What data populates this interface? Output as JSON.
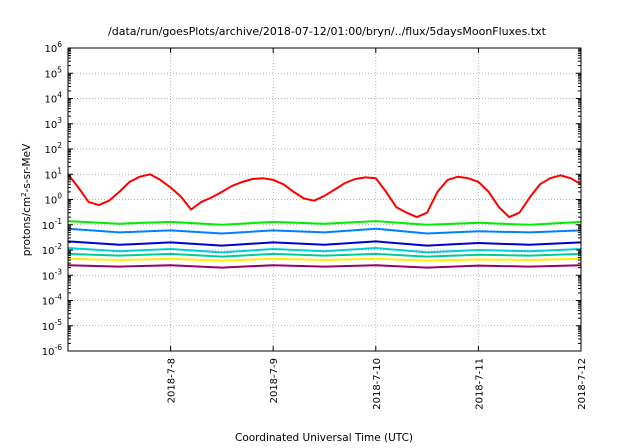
{
  "chart_data": {
    "type": "line",
    "title": "/data/run/goesPlots/archive/2018-07-12/01:00/bryn/../flux/5daysMoonFluxes.txt",
    "xlabel": "Coordinated Universal Time (UTC)",
    "ylabel_base": "protons/cm",
    "ylabel_sup": "2",
    "ylabel_rest": "-s-sr-MeV",
    "yscale": "log",
    "ylim_exp": [
      -6,
      6
    ],
    "y_tick_labels": [
      {
        "base": "10",
        "exp": "-6"
      },
      {
        "base": "10",
        "exp": "-5"
      },
      {
        "base": "10",
        "exp": "-4"
      },
      {
        "base": "10",
        "exp": "-3"
      },
      {
        "base": "10",
        "exp": "-2"
      },
      {
        "base": "10",
        "exp": "-1"
      },
      {
        "base": "10",
        "exp": "0"
      },
      {
        "base": "10",
        "exp": "1"
      },
      {
        "base": "10",
        "exp": "2"
      },
      {
        "base": "10",
        "exp": "3"
      },
      {
        "base": "10",
        "exp": "4"
      },
      {
        "base": "10",
        "exp": "5"
      },
      {
        "base": "10",
        "exp": "6"
      }
    ],
    "xlim_days": [
      0,
      5
    ],
    "x_ticks": [
      {
        "day": 1,
        "label": "2018-7-8"
      },
      {
        "day": 2,
        "label": "2018-7-9"
      },
      {
        "day": 3,
        "label": "2018-7-10"
      },
      {
        "day": 4,
        "label": "2018-7-11"
      },
      {
        "day": 5,
        "label": "2018-7-12"
      }
    ],
    "grid": true,
    "legend": "none",
    "series": [
      {
        "color": "#ff0000",
        "x": [
          0,
          0.1,
          0.2,
          0.3,
          0.4,
          0.5,
          0.6,
          0.7,
          0.8,
          0.9,
          1,
          1.1,
          1.2,
          1.3,
          1.4,
          1.5,
          1.6,
          1.7,
          1.8,
          1.9,
          2,
          2.1,
          2.2,
          2.3,
          2.4,
          2.5,
          2.6,
          2.7,
          2.8,
          2.9,
          3,
          3.1,
          3.2,
          3.3,
          3.4,
          3.5,
          3.6,
          3.7,
          3.8,
          3.9,
          4,
          4.1,
          4.2,
          4.3,
          4.4,
          4.5,
          4.6,
          4.7,
          4.8,
          4.9,
          5
        ],
        "y": [
          10,
          3,
          0.8,
          0.6,
          0.9,
          2,
          5,
          8,
          10,
          6,
          3,
          1.3,
          0.4,
          0.8,
          1.2,
          2,
          3.5,
          5,
          6.5,
          7,
          6,
          4,
          2,
          1.1,
          0.9,
          1.4,
          2.5,
          4.5,
          6.5,
          7.5,
          7,
          2,
          0.5,
          0.3,
          0.2,
          0.3,
          2,
          6,
          8,
          7,
          5,
          2,
          0.5,
          0.2,
          0.3,
          1.2,
          4,
          7,
          9,
          7,
          4
        ]
      },
      {
        "color": "#00ee00",
        "x": [
          0,
          0.5,
          1,
          1.5,
          2,
          2.5,
          3,
          3.5,
          4,
          4.5,
          5
        ],
        "y": [
          0.14,
          0.11,
          0.13,
          0.1,
          0.13,
          0.11,
          0.14,
          0.1,
          0.12,
          0.1,
          0.13
        ]
      },
      {
        "color": "#0080ff",
        "x": [
          0,
          0.5,
          1,
          1.5,
          2,
          2.5,
          3,
          3.5,
          4,
          4.5,
          5
        ],
        "y": [
          0.07,
          0.05,
          0.06,
          0.045,
          0.06,
          0.05,
          0.07,
          0.045,
          0.055,
          0.05,
          0.06
        ]
      },
      {
        "color": "#0000cc",
        "x": [
          0,
          0.5,
          1,
          1.5,
          2,
          2.5,
          3,
          3.5,
          4,
          4.5,
          5
        ],
        "y": [
          0.022,
          0.016,
          0.02,
          0.015,
          0.02,
          0.016,
          0.022,
          0.015,
          0.019,
          0.016,
          0.02
        ]
      },
      {
        "color": "#00ccdd",
        "x": [
          0,
          0.5,
          1,
          1.5,
          2,
          2.5,
          3,
          3.5,
          4,
          4.5,
          5
        ],
        "y": [
          0.012,
          0.009,
          0.011,
          0.008,
          0.011,
          0.009,
          0.012,
          0.008,
          0.01,
          0.009,
          0.011
        ]
      },
      {
        "color": "#00cc99",
        "x": [
          0,
          0.5,
          1,
          1.5,
          2,
          2.5,
          3,
          3.5,
          4,
          4.5,
          5
        ],
        "y": [
          0.007,
          0.006,
          0.007,
          0.0055,
          0.007,
          0.006,
          0.007,
          0.0055,
          0.0065,
          0.006,
          0.007
        ]
      },
      {
        "color": "#ffee00",
        "x": [
          0,
          0.5,
          1,
          1.5,
          2,
          2.5,
          3,
          3.5,
          4,
          4.5,
          5
        ],
        "y": [
          0.0045,
          0.004,
          0.0045,
          0.0038,
          0.0045,
          0.004,
          0.0045,
          0.0038,
          0.0042,
          0.004,
          0.0045
        ]
      },
      {
        "color": "#990066",
        "x": [
          0,
          0.5,
          1,
          1.5,
          2,
          2.5,
          3,
          3.5,
          4,
          4.5,
          5
        ],
        "y": [
          0.0025,
          0.0022,
          0.0025,
          0.002,
          0.0025,
          0.0022,
          0.0025,
          0.002,
          0.0024,
          0.0022,
          0.0025
        ]
      }
    ]
  }
}
